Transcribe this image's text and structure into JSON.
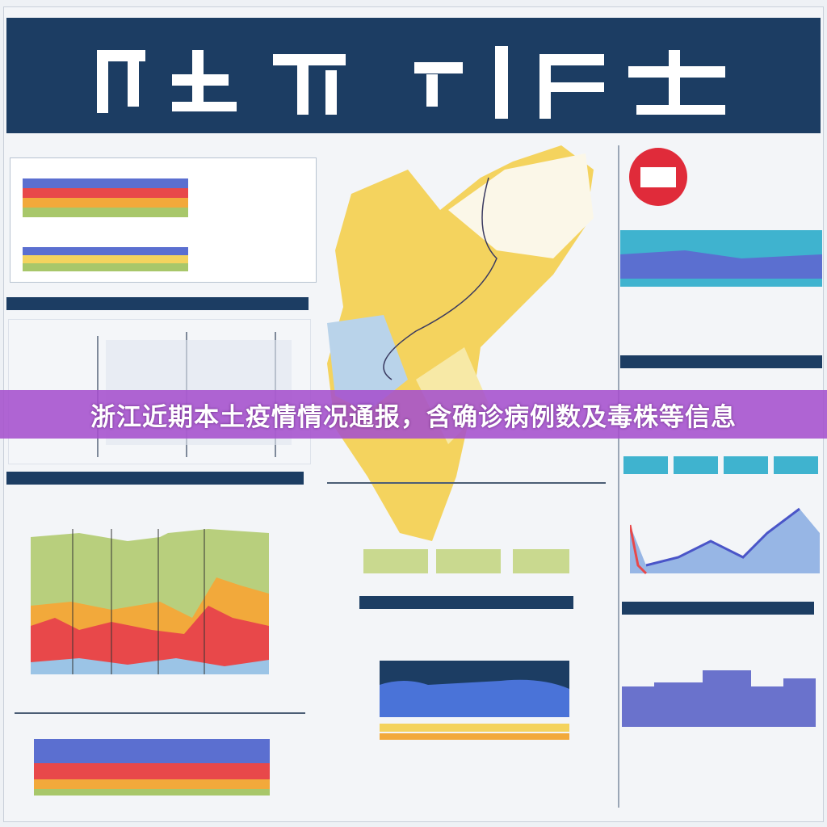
{
  "banner": {
    "text": "浙江近期本土疫情情况通报，含确诊病例数及毒株等信息"
  },
  "colors": {
    "header": "#1c3d63",
    "banner": "#a550cd",
    "map_yellow": "#f4d35e",
    "map_blue": "#b9d3ea",
    "chart_blue": "#5b6fd0",
    "chart_red": "#e8484a",
    "chart_green": "#a8c76a"
  }
}
